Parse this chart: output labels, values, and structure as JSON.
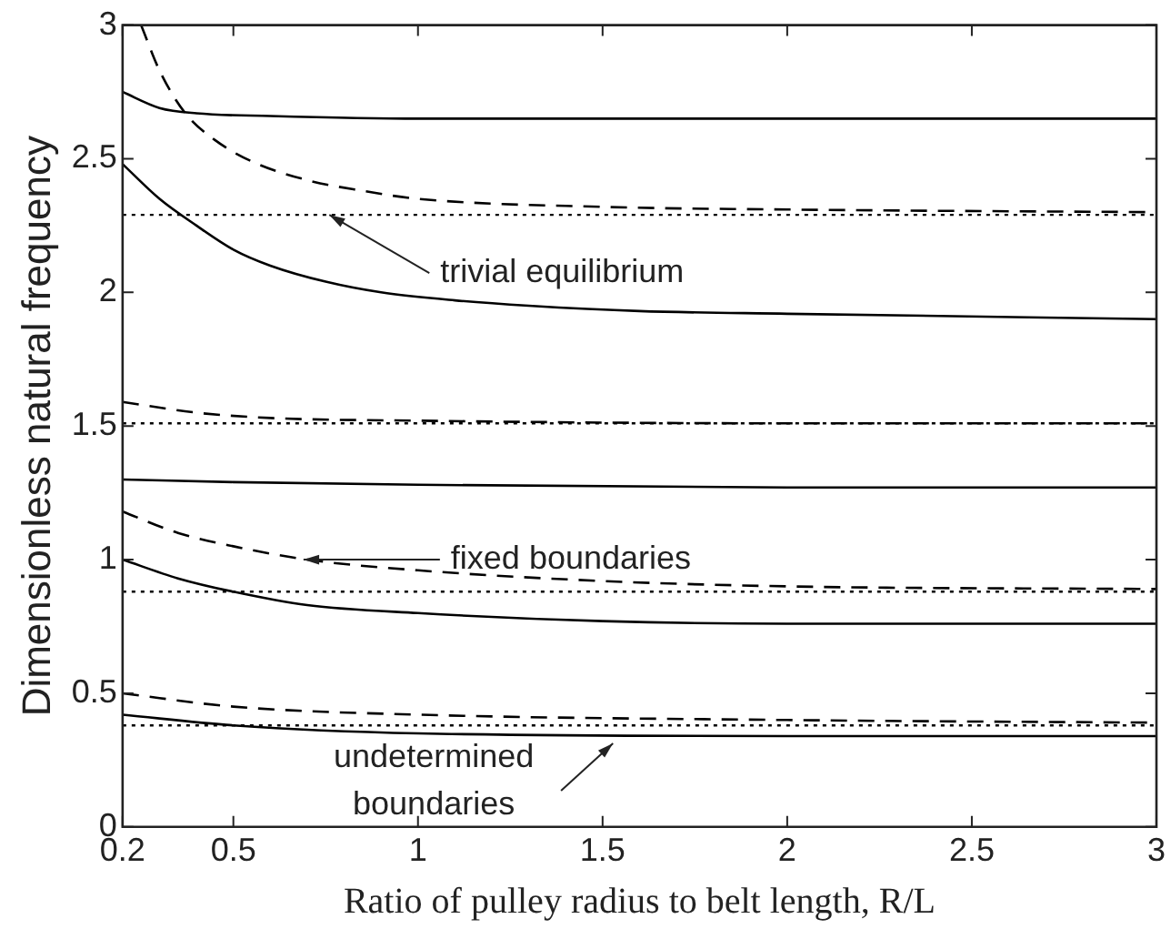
{
  "chart_data": {
    "type": "line",
    "xlabel": "Ratio of pulley radius to belt length, R/L",
    "ylabel": "Dimensionless natural frequency",
    "xlim": [
      0.2,
      3
    ],
    "ylim": [
      0,
      3
    ],
    "xticks": [
      0.2,
      0.5,
      1,
      1.5,
      2,
      2.5,
      3
    ],
    "yticks": [
      0,
      0.5,
      1,
      1.5,
      2,
      2.5,
      3
    ],
    "grid": false,
    "legend": false,
    "marker": "none",
    "series": [
      {
        "color": "#000000",
        "line_style": "solid",
        "x": [
          0.2,
          0.3,
          0.4,
          0.6,
          1,
          2,
          3
        ],
        "values": [
          2.75,
          2.69,
          2.67,
          2.66,
          2.65,
          2.65,
          2.65
        ]
      },
      {
        "color": "#000000",
        "line_style": "dashed",
        "x": [
          0.25,
          0.3,
          0.37,
          0.45,
          0.55,
          0.7,
          0.85,
          1,
          1.5,
          2,
          3
        ],
        "values": [
          3,
          2.83,
          2.67,
          2.57,
          2.49,
          2.42,
          2.38,
          2.35,
          2.32,
          2.31,
          2.3
        ]
      },
      {
        "color": "#000000",
        "line_style": "dotted",
        "x": [
          0.2,
          3
        ],
        "values": [
          2.29,
          2.29
        ]
      },
      {
        "color": "#000000",
        "line_style": "solid",
        "x": [
          0.2,
          0.3,
          0.4,
          0.5,
          0.6,
          0.75,
          0.9,
          1.1,
          1.3,
          1.6,
          2,
          3
        ],
        "values": [
          2.48,
          2.35,
          2.25,
          2.16,
          2.1,
          2.04,
          2.0,
          1.97,
          1.95,
          1.93,
          1.92,
          1.9
        ]
      },
      {
        "color": "#000000",
        "line_style": "dashed",
        "x": [
          0.2,
          0.4,
          0.6,
          1,
          2,
          3
        ],
        "values": [
          1.59,
          1.55,
          1.53,
          1.52,
          1.51,
          1.51
        ]
      },
      {
        "color": "#000000",
        "line_style": "dotted",
        "x": [
          0.2,
          3
        ],
        "values": [
          1.51,
          1.51
        ]
      },
      {
        "color": "#000000",
        "line_style": "solid",
        "x": [
          0.2,
          0.5,
          1,
          2,
          3
        ],
        "values": [
          1.3,
          1.29,
          1.28,
          1.27,
          1.27
        ]
      },
      {
        "color": "#000000",
        "line_style": "dashed",
        "x": [
          0.2,
          0.35,
          0.5,
          0.7,
          1,
          1.5,
          2,
          3
        ],
        "values": [
          1.18,
          1.1,
          1.05,
          1.0,
          0.96,
          0.92,
          0.9,
          0.89
        ]
      },
      {
        "color": "#000000",
        "line_style": "dotted",
        "x": [
          0.2,
          3
        ],
        "values": [
          0.88,
          0.88
        ]
      },
      {
        "color": "#000000",
        "line_style": "solid",
        "x": [
          0.2,
          0.35,
          0.5,
          0.7,
          1,
          1.5,
          2,
          3
        ],
        "values": [
          1.0,
          0.93,
          0.88,
          0.83,
          0.8,
          0.77,
          0.76,
          0.76
        ]
      },
      {
        "color": "#000000",
        "line_style": "dashed",
        "x": [
          0.2,
          0.5,
          1,
          2,
          3
        ],
        "values": [
          0.5,
          0.45,
          0.42,
          0.4,
          0.39
        ]
      },
      {
        "color": "#000000",
        "line_style": "dotted",
        "x": [
          0.2,
          3
        ],
        "values": [
          0.38,
          0.38
        ]
      },
      {
        "color": "#000000",
        "line_style": "solid",
        "x": [
          0.2,
          0.5,
          1,
          2,
          3
        ],
        "values": [
          0.42,
          0.38,
          0.35,
          0.34,
          0.34
        ]
      }
    ],
    "annotations": [
      {
        "text": "trivial equilibrium",
        "x": 0.76,
        "y": 2.29
      },
      {
        "text": "fixed boundaries",
        "x": 0.69,
        "y": 1.0
      },
      {
        "text": "undetermined\nboundaries",
        "x": 1.55,
        "y": 0.34
      }
    ]
  }
}
